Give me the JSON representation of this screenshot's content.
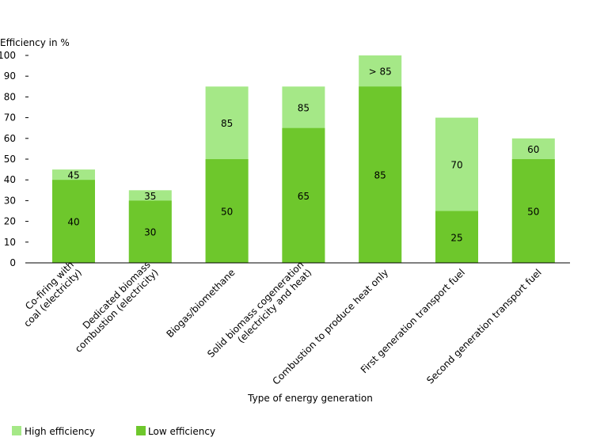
{
  "chart_data": {
    "type": "bar",
    "stacked": "overlay",
    "ylabel": "Efficiency in %",
    "xlabel": "Type of energy generation",
    "ylim": [
      0,
      100
    ],
    "yticks": [
      0,
      10,
      20,
      30,
      40,
      50,
      60,
      70,
      80,
      90,
      100
    ],
    "grid": false,
    "legend_position": "bottom-left",
    "categories": [
      "Co-firing with\ncoal (electricity)",
      "Dedicated biomass\ncombustion (electricity)",
      "Biogas/biomethane",
      "Solid biomass cogeneration\n(electricity and heat)",
      "Combustion to produce heat only",
      "First generation transport fuel",
      "Second generation transport fuel"
    ],
    "series": [
      {
        "name": "High efficiency",
        "color": "#a5e887",
        "values": [
          45,
          35,
          85,
          85,
          100,
          70,
          60
        ],
        "labels": [
          "45",
          "35",
          "85",
          "85",
          "> 85",
          "70",
          "60"
        ]
      },
      {
        "name": "Low efficiency",
        "color": "#6ec72c",
        "values": [
          40,
          30,
          50,
          65,
          85,
          25,
          50
        ],
        "labels": [
          "40",
          "30",
          "50",
          "65",
          "85",
          "25",
          "50"
        ]
      }
    ]
  }
}
